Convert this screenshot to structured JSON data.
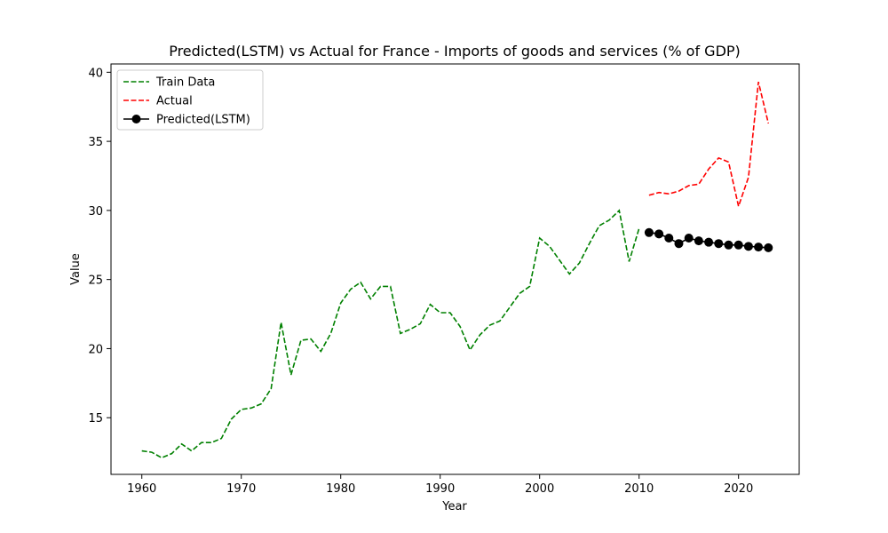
{
  "chart_data": {
    "type": "line",
    "title": "Predicted(LSTM) vs Actual for France - Imports of goods and services (% of GDP)",
    "xlabel": "Year",
    "ylabel": "Value",
    "xlim": [
      1956.9,
      2026.1
    ],
    "ylim": [
      10.9,
      40.6
    ],
    "xticks": [
      1960,
      1970,
      1980,
      1990,
      2000,
      2010,
      2020
    ],
    "yticks": [
      15,
      20,
      25,
      30,
      35,
      40
    ],
    "legend_position": "top-left",
    "grid": false,
    "series": [
      {
        "name": "Train Data",
        "style": "dashed",
        "color": "#008000",
        "markers": false,
        "x": [
          1960,
          1961,
          1962,
          1963,
          1964,
          1965,
          1966,
          1967,
          1968,
          1969,
          1970,
          1971,
          1972,
          1973,
          1974,
          1975,
          1976,
          1977,
          1978,
          1979,
          1980,
          1981,
          1982,
          1983,
          1984,
          1985,
          1986,
          1987,
          1988,
          1989,
          1990,
          1991,
          1992,
          1993,
          1994,
          1995,
          1996,
          1997,
          1998,
          1999,
          2000,
          2001,
          2002,
          2003,
          2004,
          2005,
          2006,
          2007,
          2008,
          2009,
          2010
        ],
        "y": [
          12.6,
          12.5,
          12.1,
          12.4,
          13.1,
          12.6,
          13.2,
          13.2,
          13.5,
          14.9,
          15.6,
          15.7,
          16.0,
          17.1,
          21.9,
          18.1,
          20.6,
          20.7,
          19.8,
          21.1,
          23.3,
          24.3,
          24.8,
          23.6,
          24.5,
          24.5,
          21.1,
          21.4,
          21.8,
          23.2,
          22.6,
          22.6,
          21.6,
          19.9,
          21.0,
          21.7,
          22.0,
          23.0,
          24.0,
          24.5,
          28.0,
          27.4,
          26.4,
          25.4,
          26.2,
          27.6,
          28.9,
          29.3,
          30.0,
          26.3,
          28.7
        ]
      },
      {
        "name": "Actual",
        "style": "dashed",
        "color": "#ff0000",
        "markers": false,
        "x": [
          2011,
          2012,
          2013,
          2014,
          2015,
          2016,
          2017,
          2018,
          2019,
          2020,
          2021,
          2022,
          2023
        ],
        "y": [
          31.1,
          31.3,
          31.2,
          31.4,
          31.8,
          31.9,
          33.0,
          33.8,
          33.5,
          30.3,
          32.4,
          39.3,
          36.3
        ]
      },
      {
        "name": "Predicted(LSTM)",
        "style": "solid",
        "color": "#000000",
        "markers": true,
        "x": [
          2011,
          2012,
          2013,
          2014,
          2015,
          2016,
          2017,
          2018,
          2019,
          2020,
          2021,
          2022,
          2023
        ],
        "y": [
          28.4,
          28.3,
          28.0,
          27.6,
          28.0,
          27.8,
          27.7,
          27.6,
          27.5,
          27.5,
          27.4,
          27.35,
          27.3
        ]
      }
    ]
  }
}
